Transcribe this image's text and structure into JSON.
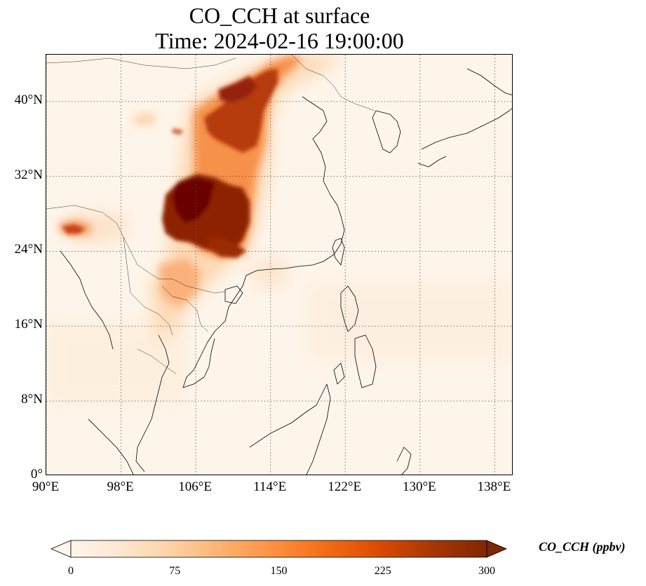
{
  "title": {
    "line1": "CO_CCH at surface",
    "line2": "Time: 2024-02-16 19:00:00"
  },
  "map": {
    "extent": {
      "lon_min": 90,
      "lon_max": 140,
      "lat_min": 0,
      "lat_max": 45
    },
    "lat_ticks": [
      {
        "value": 0,
        "label": "0°"
      },
      {
        "value": 8,
        "label": "8°N"
      },
      {
        "value": 16,
        "label": "16°N"
      },
      {
        "value": 24,
        "label": "24°N"
      },
      {
        "value": 32,
        "label": "32°N"
      },
      {
        "value": 40,
        "label": "40°N"
      }
    ],
    "lon_ticks": [
      {
        "value": 90,
        "label": "90°E"
      },
      {
        "value": 98,
        "label": "98°E"
      },
      {
        "value": 106,
        "label": "106°E"
      },
      {
        "value": 114,
        "label": "114°E"
      },
      {
        "value": 122,
        "label": "122°E"
      },
      {
        "value": 130,
        "label": "130°E"
      },
      {
        "value": 138,
        "label": "138°E"
      }
    ],
    "gridlines": true,
    "background_color": "#fef5ea",
    "coastline_color": "#000000"
  },
  "colorbar": {
    "label": "CO_CCH (ppbv)",
    "min": 0,
    "max": 300,
    "ticks": [
      {
        "value": 0,
        "label": "0"
      },
      {
        "value": 75,
        "label": "75"
      },
      {
        "value": 150,
        "label": "150"
      },
      {
        "value": 225,
        "label": "225"
      },
      {
        "value": 300,
        "label": "300"
      }
    ],
    "colormap": [
      "#fff5eb",
      "#fee6ce",
      "#fdd0a2",
      "#fdae6b",
      "#fd8d3c",
      "#f16913",
      "#d94801",
      "#a63603",
      "#7f2704"
    ],
    "extend": "both"
  }
}
